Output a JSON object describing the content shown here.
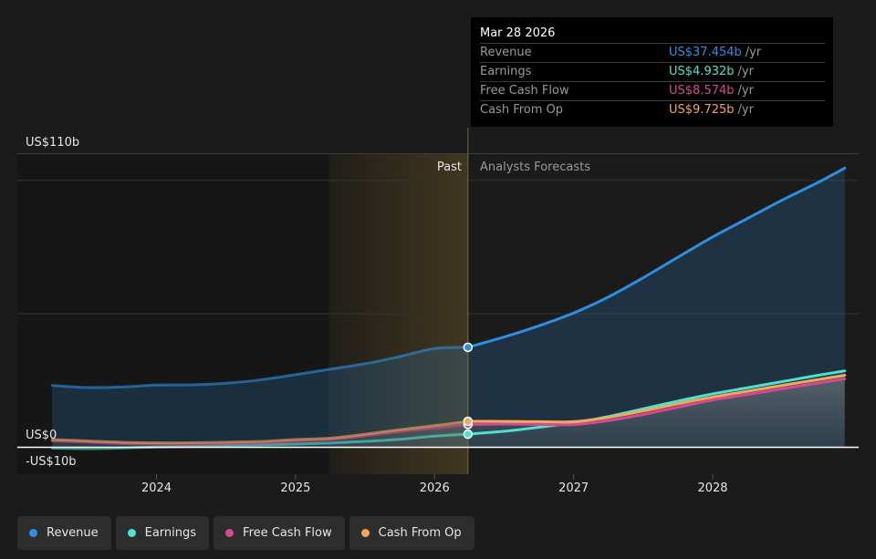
{
  "chart_data": {
    "type": "area",
    "y_axis": {
      "min": -10,
      "max": 110,
      "labels": [
        "US$110b",
        "US$0",
        "-US$10b"
      ]
    },
    "x_axis": {
      "ticks": [
        "2024",
        "2025",
        "2026",
        "2027",
        "2028"
      ]
    },
    "past_label": "Past",
    "forecast_label": "Analysts Forecasts",
    "series": [
      {
        "name": "Revenue",
        "color": "#2e8fe0",
        "points": [
          [
            2023.25,
            23.2
          ],
          [
            2023.5,
            22.4
          ],
          [
            2023.75,
            22.6
          ],
          [
            2024.0,
            23.3
          ],
          [
            2024.25,
            23.4
          ],
          [
            2024.5,
            24.0
          ],
          [
            2024.75,
            25.3
          ],
          [
            2025.0,
            27.2
          ],
          [
            2025.25,
            29.3
          ],
          [
            2025.5,
            31.3
          ],
          [
            2025.75,
            34.0
          ],
          [
            2026.0,
            37.0
          ],
          [
            2026.24,
            37.454
          ],
          [
            2026.5,
            41.3
          ],
          [
            2026.75,
            45.5
          ],
          [
            2027.0,
            50.3
          ],
          [
            2027.25,
            56.3
          ],
          [
            2027.5,
            63.5
          ],
          [
            2027.75,
            71.2
          ],
          [
            2028.0,
            78.8
          ],
          [
            2028.25,
            85.7
          ],
          [
            2028.5,
            92.6
          ],
          [
            2028.75,
            99.0
          ],
          [
            2028.95,
            104.6
          ]
        ]
      },
      {
        "name": "Earnings",
        "color": "#4fe3cf",
        "points": [
          [
            2023.25,
            -0.3
          ],
          [
            2023.5,
            -0.5
          ],
          [
            2023.75,
            -0.3
          ],
          [
            2024.0,
            0.1
          ],
          [
            2024.25,
            0.3
          ],
          [
            2024.5,
            0.6
          ],
          [
            2024.75,
            0.9
          ],
          [
            2025.0,
            1.2
          ],
          [
            2025.25,
            1.6
          ],
          [
            2025.5,
            2.2
          ],
          [
            2025.75,
            3.0
          ],
          [
            2026.0,
            4.2
          ],
          [
            2026.24,
            4.932
          ],
          [
            2026.5,
            6.0
          ],
          [
            2026.75,
            7.5
          ],
          [
            2027.0,
            9.2
          ],
          [
            2027.25,
            11.5
          ],
          [
            2027.5,
            14.4
          ],
          [
            2027.75,
            17.3
          ],
          [
            2028.0,
            20.0
          ],
          [
            2028.25,
            22.3
          ],
          [
            2028.5,
            24.6
          ],
          [
            2028.75,
            26.9
          ],
          [
            2028.95,
            28.6
          ]
        ]
      },
      {
        "name": "Free Cash Flow",
        "color": "#d7498f",
        "points": [
          [
            2023.25,
            2.4
          ],
          [
            2023.5,
            1.9
          ],
          [
            2023.75,
            1.4
          ],
          [
            2024.0,
            1.1
          ],
          [
            2024.25,
            1.1
          ],
          [
            2024.5,
            1.3
          ],
          [
            2024.75,
            1.6
          ],
          [
            2025.0,
            2.3
          ],
          [
            2025.25,
            2.8
          ],
          [
            2025.5,
            4.3
          ],
          [
            2025.75,
            5.9
          ],
          [
            2026.0,
            7.2
          ],
          [
            2026.24,
            8.574
          ],
          [
            2026.5,
            8.7
          ],
          [
            2026.75,
            8.6
          ],
          [
            2027.0,
            8.5
          ],
          [
            2027.25,
            10.0
          ],
          [
            2027.5,
            12.3
          ],
          [
            2027.75,
            15.0
          ],
          [
            2028.0,
            17.7
          ],
          [
            2028.25,
            19.8
          ],
          [
            2028.5,
            21.9
          ],
          [
            2028.75,
            24.0
          ],
          [
            2028.95,
            25.6
          ]
        ]
      },
      {
        "name": "Cash From Op",
        "color": "#f0a85a",
        "points": [
          [
            2023.25,
            2.9
          ],
          [
            2023.5,
            2.4
          ],
          [
            2023.75,
            1.9
          ],
          [
            2024.0,
            1.7
          ],
          [
            2024.25,
            1.7
          ],
          [
            2024.5,
            1.9
          ],
          [
            2024.75,
            2.2
          ],
          [
            2025.0,
            2.9
          ],
          [
            2025.25,
            3.4
          ],
          [
            2025.5,
            4.9
          ],
          [
            2025.75,
            6.6
          ],
          [
            2026.0,
            8.1
          ],
          [
            2026.24,
            9.725
          ],
          [
            2026.5,
            9.7
          ],
          [
            2026.75,
            9.6
          ],
          [
            2027.0,
            9.6
          ],
          [
            2027.25,
            11.2
          ],
          [
            2027.5,
            13.6
          ],
          [
            2027.75,
            16.3
          ],
          [
            2028.0,
            18.8
          ],
          [
            2028.25,
            21.0
          ],
          [
            2028.5,
            23.2
          ],
          [
            2028.75,
            25.3
          ],
          [
            2028.95,
            27.0
          ]
        ]
      }
    ],
    "current_date": 2026.24,
    "highlight_start": 2025.24
  },
  "tooltip": {
    "date": "Mar 28 2026",
    "rows": [
      {
        "label": "Revenue",
        "value": "US$37.454b",
        "unit": "/yr",
        "color": "#2e8fe0"
      },
      {
        "label": "Earnings",
        "value": "US$4.932b",
        "unit": "/yr",
        "color": "#4fe3cf"
      },
      {
        "label": "Free Cash Flow",
        "value": "US$8.574b",
        "unit": "/yr",
        "color": "#d7498f"
      },
      {
        "label": "Cash From Op",
        "value": "US$9.725b",
        "unit": "/yr",
        "color": "#f0a85a"
      }
    ]
  },
  "legend": [
    {
      "label": "Revenue",
      "color": "#2e8fe0"
    },
    {
      "label": "Earnings",
      "color": "#4fe3cf"
    },
    {
      "label": "Free Cash Flow",
      "color": "#d7498f"
    },
    {
      "label": "Cash From Op",
      "color": "#f0a85a"
    }
  ]
}
